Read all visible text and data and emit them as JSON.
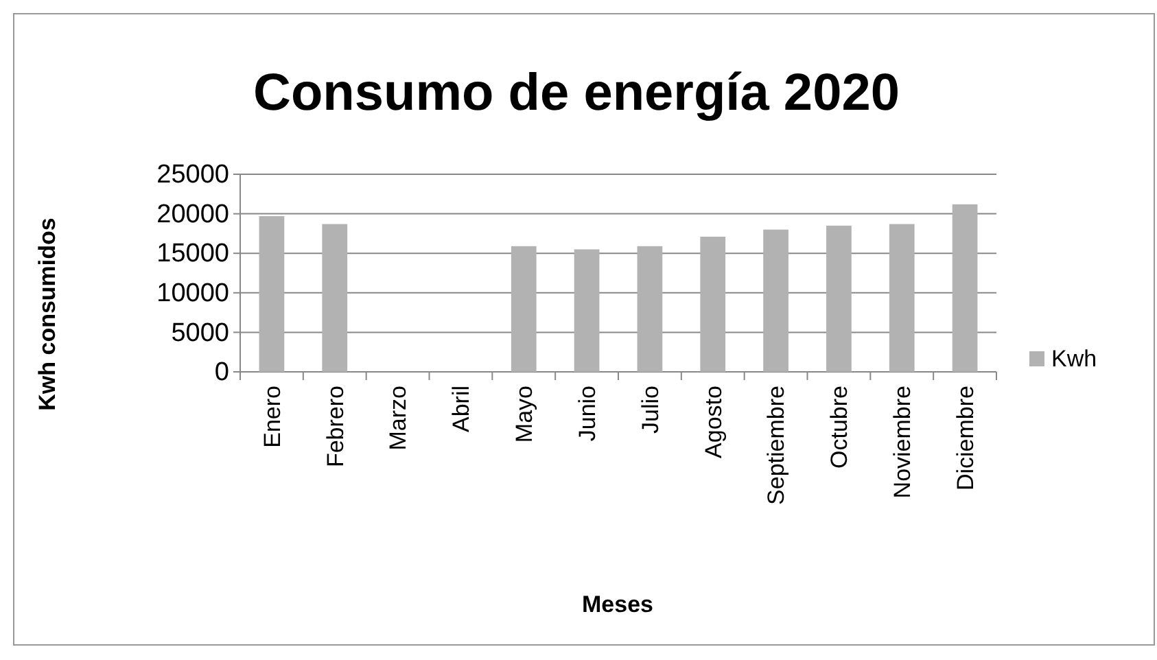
{
  "chart_data": {
    "type": "bar",
    "title": "Consumo de energía 2020",
    "xlabel": "Meses",
    "ylabel": "Kwh consumidos",
    "categories": [
      "Enero",
      "Febrero",
      "Marzo",
      "Abril",
      "Mayo",
      "Junio",
      "Julio",
      "Agosto",
      "Septiembre",
      "Octubre",
      "Noviembre",
      "Diciembre"
    ],
    "series": [
      {
        "name": "Kwh",
        "color": "#b2b2b2",
        "values": [
          19700,
          18700,
          null,
          null,
          15900,
          15500,
          15900,
          17100,
          18000,
          18500,
          18700,
          21200
        ]
      }
    ],
    "ylim": [
      0,
      25000
    ],
    "yticks": [
      0,
      5000,
      10000,
      15000,
      20000,
      25000
    ],
    "grid": "y",
    "legend": "right"
  }
}
